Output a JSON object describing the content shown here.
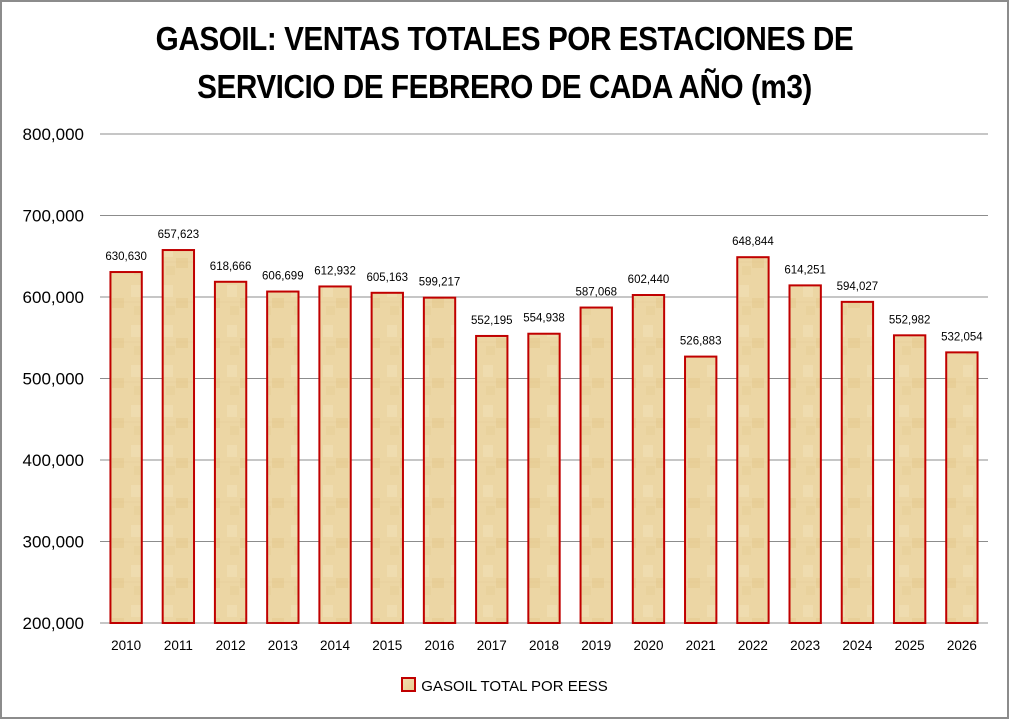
{
  "chart_data": {
    "type": "bar",
    "title": "GASOIL: VENTAS TOTALES POR ESTACIONES DE SERVICIO DE FEBRERO DE CADA AÑO (m3)",
    "title_lines": [
      "GASOIL: VENTAS TOTALES POR ESTACIONES DE",
      "SERVICIO DE FEBRERO DE CADA AÑO (m3)"
    ],
    "xlabel": "",
    "ylabel": "",
    "categories": [
      "2010",
      "2011",
      "2012",
      "2013",
      "2014",
      "2015",
      "2016",
      "2017",
      "2018",
      "2019",
      "2020",
      "2021",
      "2022",
      "2023",
      "2024",
      "2025",
      "2026"
    ],
    "series": [
      {
        "name": "GASOIL TOTAL POR EESS",
        "values": [
          630630,
          657623,
          618666,
          606699,
          612932,
          605163,
          599217,
          552195,
          554938,
          587068,
          602440,
          526883,
          648844,
          614251,
          594027,
          552982,
          532054
        ],
        "labels": [
          "630,630",
          "657,623",
          "618,666",
          "606,699",
          "612,932",
          "605,163",
          "599,217",
          "552,195",
          "554,938",
          "587,068",
          "602,440",
          "526,883",
          "648,844",
          "614,251",
          "594,027",
          "552,982",
          "532,054"
        ]
      }
    ],
    "ylim": [
      200000,
      800000
    ],
    "yticks": [
      200000,
      300000,
      400000,
      500000,
      600000,
      700000,
      800000
    ],
    "ytick_labels": [
      "200,000",
      "300,000",
      "400,000",
      "500,000",
      "600,000",
      "700,000",
      "800,000"
    ],
    "grid": true,
    "legend_position": "bottom",
    "colors": {
      "bar_fill": "#ecd6a4",
      "bar_border": "#c00000",
      "grid": "#8c8c8c"
    }
  }
}
